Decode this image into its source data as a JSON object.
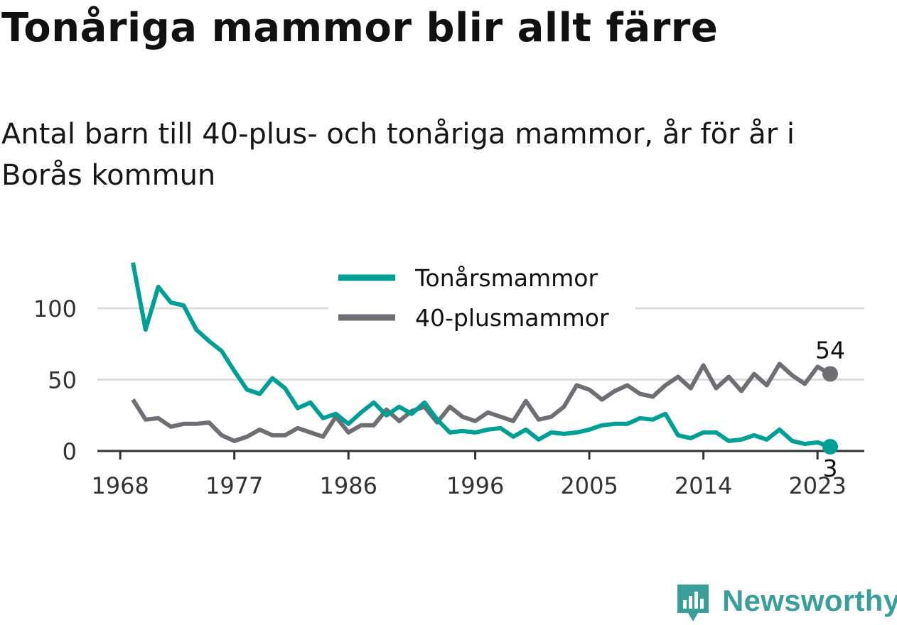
{
  "title": "Tonåriga mammor blir allt färre",
  "subtitle": "Antal barn till 40-plus- och tonåriga mammor, år för år i Borås kommun",
  "brand": {
    "name": "Newsworthy"
  },
  "colors": {
    "teal": "#009f95",
    "gray": "#6e6e75",
    "grid": "#dddddd",
    "axis": "#333333",
    "brand": "#3a9e99"
  },
  "chart_data": {
    "type": "line",
    "x": [
      1969,
      1970,
      1971,
      1972,
      1973,
      1974,
      1975,
      1976,
      1977,
      1978,
      1979,
      1980,
      1981,
      1982,
      1983,
      1984,
      1985,
      1986,
      1987,
      1988,
      1989,
      1990,
      1991,
      1992,
      1993,
      1994,
      1995,
      1996,
      1997,
      1998,
      1999,
      2000,
      2001,
      2002,
      2003,
      2004,
      2005,
      2006,
      2007,
      2008,
      2009,
      2010,
      2011,
      2012,
      2013,
      2014,
      2015,
      2016,
      2017,
      2018,
      2019,
      2020,
      2021,
      2022,
      2023,
      2024
    ],
    "series": [
      {
        "name": "Tonårsmammor",
        "color": "#009f95",
        "values": [
          132,
          85,
          115,
          104,
          102,
          85,
          77,
          70,
          56,
          43,
          40,
          51,
          44,
          30,
          34,
          23,
          26,
          19,
          27,
          34,
          25,
          31,
          26,
          34,
          22,
          13,
          14,
          13,
          15,
          16,
          10,
          15,
          8,
          13,
          12,
          13,
          15,
          18,
          19,
          19,
          23,
          22,
          26,
          11,
          9,
          13,
          13,
          7,
          8,
          11,
          8,
          15,
          7,
          5,
          6,
          3
        ]
      },
      {
        "name": "40-plusmammor",
        "color": "#6e6e75",
        "values": [
          36,
          22,
          23,
          17,
          19,
          19,
          20,
          11,
          7,
          10,
          15,
          11,
          11,
          16,
          13,
          10,
          24,
          13,
          18,
          18,
          29,
          21,
          28,
          31,
          20,
          31,
          24,
          21,
          27,
          24,
          21,
          35,
          22,
          24,
          31,
          46,
          43,
          36,
          42,
          46,
          40,
          38,
          46,
          52,
          44,
          60,
          44,
          52,
          42,
          54,
          46,
          61,
          53,
          47,
          59,
          54
        ]
      }
    ],
    "end_labels": [
      "54",
      "3"
    ],
    "x_ticks": [
      "1968",
      "1977",
      "1986",
      "1996",
      "2005",
      "2014",
      "2023"
    ],
    "y_ticks": [
      "0",
      "50",
      "100"
    ],
    "xlim": [
      1969,
      2024
    ],
    "ylim": [
      0,
      132
    ],
    "grid": true,
    "legend": "top-center"
  }
}
